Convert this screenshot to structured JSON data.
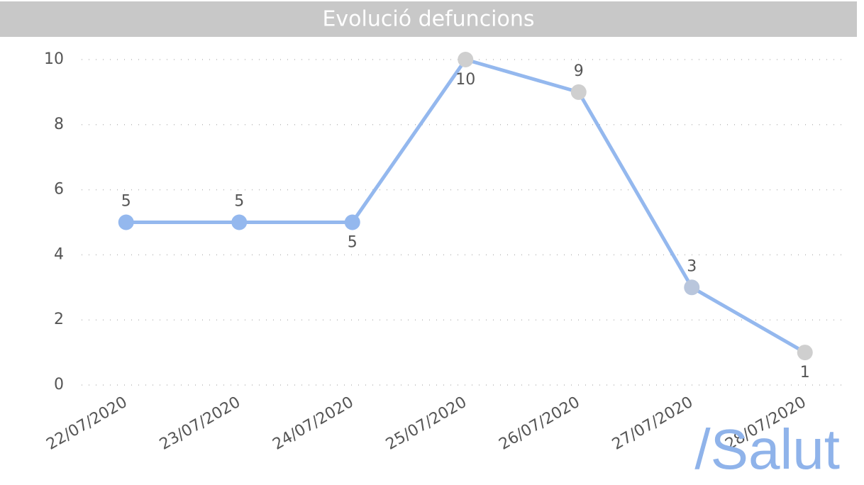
{
  "chart_data": {
    "type": "line",
    "title": "Evolució defuncions",
    "categories": [
      "22/07/2020",
      "23/07/2020",
      "24/07/2020",
      "25/07/2020",
      "26/07/2020",
      "27/07/2020",
      "28/07/2020"
    ],
    "series": [
      {
        "name": "Defuncions",
        "color": "#94b8ee",
        "values": [
          5,
          5,
          5,
          10,
          9,
          3,
          1
        ]
      }
    ],
    "point_colors": [
      "#94b8ee",
      "#94b8ee",
      "#94b8ee",
      "#cfcfcf",
      "#cfcfcf",
      "#b9c6dc",
      "#cfcfcf"
    ],
    "ylim": [
      0,
      10
    ],
    "yticks": [
      0,
      2,
      4,
      6,
      8,
      10
    ],
    "grid": true,
    "logo": "/Salut"
  }
}
